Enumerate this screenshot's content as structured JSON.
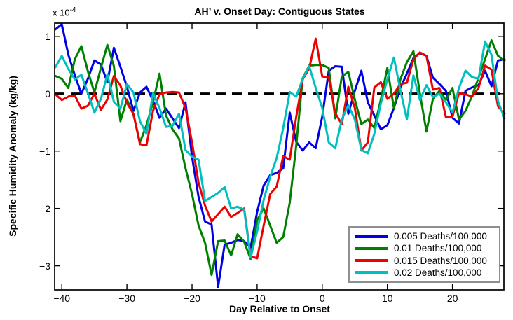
{
  "title": "AH’ v. Onset Day: Contiguous States",
  "axes": {
    "xlabel": "Day Relative to Onset",
    "ylabel": "Specific Humidity Anomaly (kg/kg)",
    "y_multiplier_base": "x 10",
    "y_multiplier_exp": "-4",
    "xticks": [
      -40,
      -30,
      -20,
      -10,
      0,
      10,
      20
    ],
    "yticks": [
      1,
      0,
      -1,
      -2,
      -3
    ]
  },
  "legend": {
    "entries": [
      {
        "label": "0.005 Deaths/100,000",
        "color": "#0000e6"
      },
      {
        "label": "0.01 Deaths/100,000",
        "color": "#008000"
      },
      {
        "label": "0.015 Deaths/100,000",
        "color": "#ee0000"
      },
      {
        "label": "0.02 Deaths/100,000",
        "color": "#00bfbf"
      }
    ]
  },
  "chart_data": {
    "type": "line",
    "title": "AH' v. Onset Day: Contiguous States",
    "xlabel": "Day Relative to Onset",
    "ylabel": "Specific Humidity Anomaly (kg/kg)",
    "y_unit_multiplier": "1e-4",
    "xlim": [
      -41.1,
      27.9
    ],
    "ylim": [
      -3.42,
      1.23
    ],
    "grid": false,
    "zero_line": {
      "style": "dashed",
      "color": "#000000",
      "y": 0
    },
    "legend_position": "lower right",
    "x": [
      -41,
      -40,
      -39,
      -38,
      -37,
      -36,
      -35,
      -34,
      -33,
      -32,
      -31,
      -30,
      -29,
      -28,
      -27,
      -26,
      -25,
      -24,
      -23,
      -22,
      -21,
      -20,
      -19,
      -18,
      -17,
      -16,
      -15,
      -14,
      -13,
      -12,
      -11,
      -10,
      -9,
      -8,
      -7,
      -6,
      -5,
      -4,
      -3,
      -2,
      -1,
      0,
      1,
      2,
      3,
      4,
      5,
      6,
      7,
      8,
      9,
      10,
      11,
      12,
      13,
      14,
      15,
      16,
      17,
      18,
      19,
      20,
      21,
      22,
      23,
      24,
      25,
      26,
      27,
      28
    ],
    "series": [
      {
        "name": "0.005 Deaths/100,000",
        "color": "#0000e6",
        "values": [
          1.12,
          1.21,
          0.68,
          0.32,
          0.0,
          0.26,
          0.58,
          0.51,
          0.2,
          0.8,
          0.47,
          0.12,
          -0.3,
          0.02,
          0.12,
          -0.12,
          -0.42,
          -0.26,
          -0.43,
          -0.6,
          -0.15,
          -1.1,
          -1.8,
          -2.23,
          -2.28,
          -3.37,
          -2.63,
          -2.6,
          -2.55,
          -2.57,
          -2.68,
          -2.06,
          -1.6,
          -1.42,
          -1.38,
          -1.3,
          -0.33,
          -0.84,
          -0.99,
          -0.85,
          -0.95,
          -0.4,
          0.4,
          0.48,
          0.47,
          -0.35,
          0.05,
          0.4,
          -0.15,
          -0.38,
          -0.62,
          -0.55,
          -0.25,
          0.1,
          0.35,
          0.62,
          0.71,
          0.66,
          0.28,
          0.17,
          0.05,
          -0.42,
          -0.52,
          0.05,
          0.11,
          0.15,
          0.4,
          0.13,
          0.58,
          0.6
        ]
      },
      {
        "name": "0.01 Deaths/100,000",
        "color": "#008000",
        "values": [
          0.31,
          0.26,
          0.1,
          0.6,
          0.83,
          0.39,
          0.02,
          0.45,
          0.85,
          0.48,
          -0.48,
          -0.1,
          -0.36,
          -0.85,
          -0.55,
          -0.15,
          0.35,
          -0.38,
          -0.62,
          -0.78,
          -1.3,
          -1.75,
          -2.3,
          -2.6,
          -3.16,
          -2.57,
          -2.56,
          -2.82,
          -2.45,
          -2.58,
          -2.88,
          -2.2,
          -2.0,
          -2.3,
          -2.6,
          -2.5,
          -1.9,
          -0.9,
          0.27,
          0.49,
          0.5,
          0.5,
          0.45,
          -0.43,
          0.3,
          0.38,
          -0.1,
          -0.53,
          -0.45,
          -0.6,
          -0.1,
          0.45,
          -0.25,
          0.25,
          0.55,
          0.74,
          0.0,
          -0.66,
          -0.09,
          0.05,
          -0.11,
          0.1,
          -0.45,
          -0.3,
          -0.04,
          0.28,
          0.6,
          0.93,
          0.66,
          0.58
        ]
      },
      {
        "name": "0.015 Deaths/100,000",
        "color": "#ee0000",
        "values": [
          -0.01,
          -0.11,
          -0.05,
          -0.03,
          -0.26,
          -0.21,
          0.0,
          -0.28,
          -0.1,
          0.31,
          0.14,
          -0.16,
          -0.35,
          -0.88,
          -0.9,
          -0.3,
          -0.01,
          0.02,
          0.03,
          0.02,
          -0.25,
          -0.85,
          -1.55,
          -1.95,
          -2.23,
          -2.1,
          -1.97,
          -2.15,
          -2.08,
          -2.0,
          -2.83,
          -2.87,
          -2.3,
          -1.75,
          -1.62,
          -1.09,
          -1.15,
          -0.4,
          0.25,
          0.44,
          0.96,
          0.3,
          0.29,
          -0.34,
          -0.53,
          0.12,
          -0.25,
          -0.99,
          -0.85,
          0.11,
          0.2,
          -0.09,
          0.0,
          0.17,
          0.19,
          0.6,
          0.72,
          0.66,
          0.07,
          0.1,
          -0.41,
          -0.4,
          0.01,
          -0.01,
          -0.05,
          0.1,
          0.49,
          0.42,
          -0.22,
          -0.35
        ]
      },
      {
        "name": "0.02 Deaths/100,000",
        "color": "#00bfbf",
        "values": [
          0.46,
          0.66,
          0.43,
          0.25,
          0.33,
          0.01,
          -0.33,
          -0.09,
          0.34,
          -0.14,
          -0.26,
          0.17,
          0.02,
          -0.48,
          -0.7,
          0.01,
          -0.25,
          -0.58,
          -0.56,
          -0.35,
          -0.98,
          -1.1,
          -1.15,
          -1.87,
          -1.8,
          -1.73,
          -1.63,
          -2.0,
          -1.97,
          -2.02,
          -2.86,
          -2.4,
          -1.85,
          -1.45,
          -1.12,
          -0.6,
          0.03,
          -0.05,
          0.26,
          0.48,
          0.1,
          -0.25,
          -0.85,
          -0.95,
          -0.45,
          -0.2,
          -0.45,
          -0.98,
          -1.04,
          -0.7,
          -0.17,
          0.25,
          0.63,
          0.06,
          -0.45,
          0.32,
          -0.11,
          0.15,
          -0.06,
          0.0,
          -0.15,
          -0.33,
          0.1,
          0.4,
          0.29,
          0.26,
          0.91,
          0.68,
          -0.13,
          -0.43
        ]
      }
    ]
  }
}
